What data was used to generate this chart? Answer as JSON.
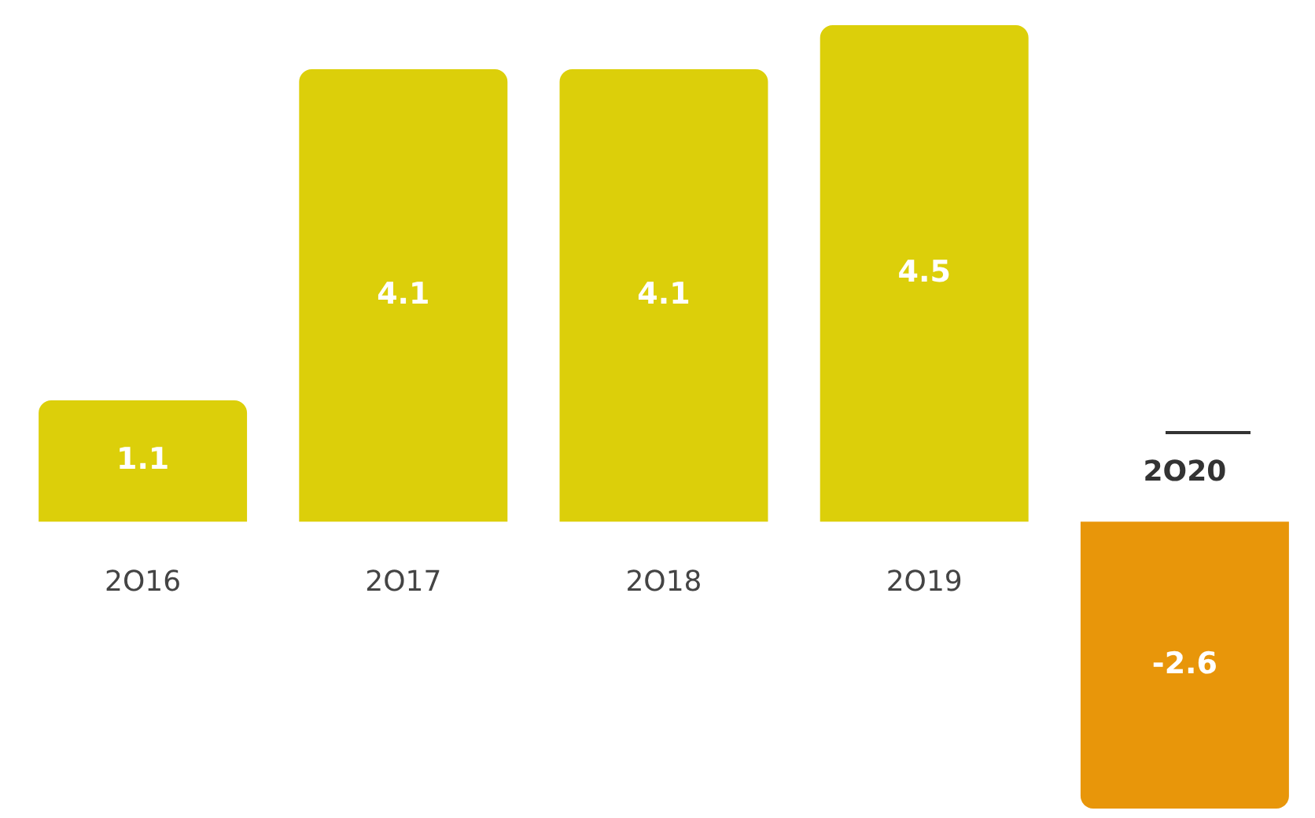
{
  "chart_data": {
    "type": "bar",
    "categories": [
      "2O16",
      "2O17",
      "2O18",
      "2O19",
      "2O20"
    ],
    "values": [
      1.1,
      4.1,
      4.1,
      4.5,
      -2.6
    ],
    "colors": [
      "#dccf0a",
      "#dccf0a",
      "#dccf0a",
      "#dccf0a",
      "#e8960a"
    ],
    "data_labels": true,
    "legend": false
  }
}
